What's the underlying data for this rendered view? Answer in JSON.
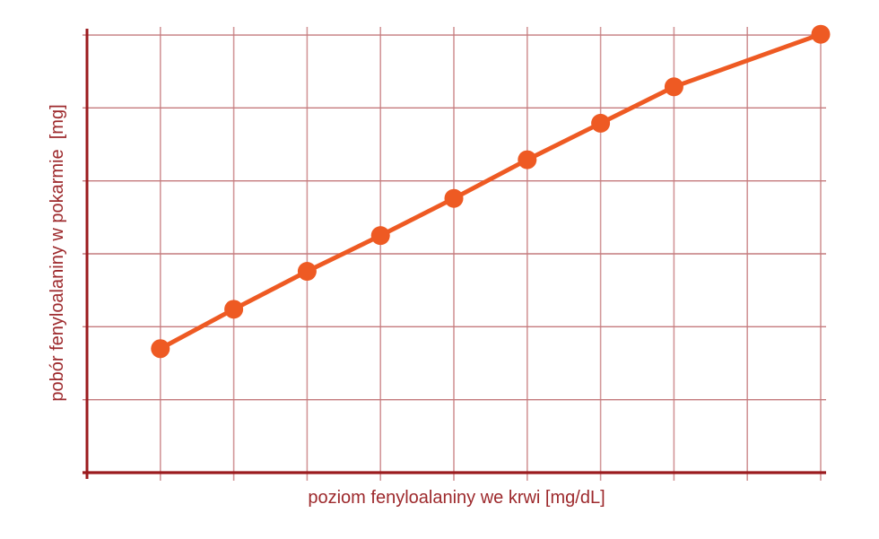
{
  "figure": {
    "background": "#ffffff"
  },
  "chart_data": {
    "type": "line",
    "title": "",
    "xlabel": "poziom fenyloalaniny we krwi [mg/dL]",
    "ylabel": "pobór fenyloalaniny w pokarmie  [mg]",
    "x_axis": {
      "min": 0,
      "max": 10,
      "gridline_step": 1,
      "tick_labels": []
    },
    "y_axis": {
      "min": 0,
      "max": 6,
      "gridline_step": 1,
      "tick_labels": []
    },
    "grid": true,
    "legend": "none",
    "series": [
      {
        "name": "pobór fenyloalaniny w pokarmie",
        "marker": "circle",
        "points": [
          {
            "x": 1,
            "y": 1.7
          },
          {
            "x": 2,
            "y": 2.24
          },
          {
            "x": 3,
            "y": 2.76
          },
          {
            "x": 4,
            "y": 3.25
          },
          {
            "x": 5,
            "y": 3.76
          },
          {
            "x": 6,
            "y": 4.29
          },
          {
            "x": 7,
            "y": 4.79
          },
          {
            "x": 8,
            "y": 5.29
          },
          {
            "x": 10,
            "y": 6.01
          }
        ]
      }
    ],
    "colors": {
      "series": "#ee5a23",
      "axis": "#9b1b1e",
      "grid_horizontal": "#c47a7d",
      "grid_vertical": "#d29698",
      "label_text": "#9d292c"
    }
  }
}
